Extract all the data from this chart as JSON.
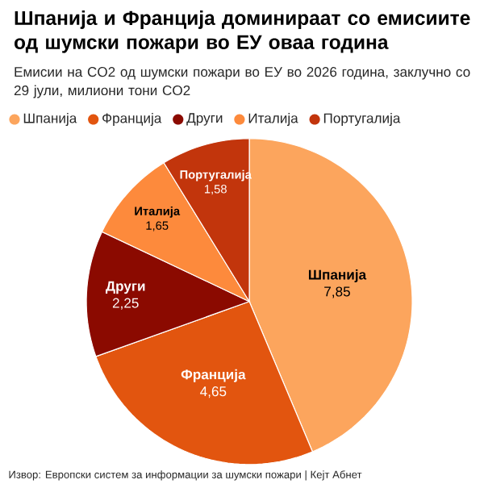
{
  "chart_data": {
    "type": "pie",
    "title": "Шпанија и Франција доминираат со емисиите од шумски пожари во ЕУ оваа година",
    "subtitle": "Емисии на CO2 од шумски пожари во ЕУ во 2026 година, заклучно со 29 јули, милиони тони CO2",
    "categories": [
      "Шпанија",
      "Франција",
      "Други",
      "Италија",
      "Португалија"
    ],
    "values": [
      7.85,
      4.65,
      2.25,
      1.65,
      1.58
    ],
    "value_labels": [
      "7,85",
      "4,65",
      "2,25",
      "1,65",
      "1,58"
    ],
    "colors": [
      "#fca55d",
      "#e2550f",
      "#8b0a00",
      "#fd8a3c",
      "#c2350c"
    ],
    "legend": "top",
    "annotations": [
      "Извор: Европски систем за информации за шумски пожари | Кејт Абнет"
    ]
  }
}
